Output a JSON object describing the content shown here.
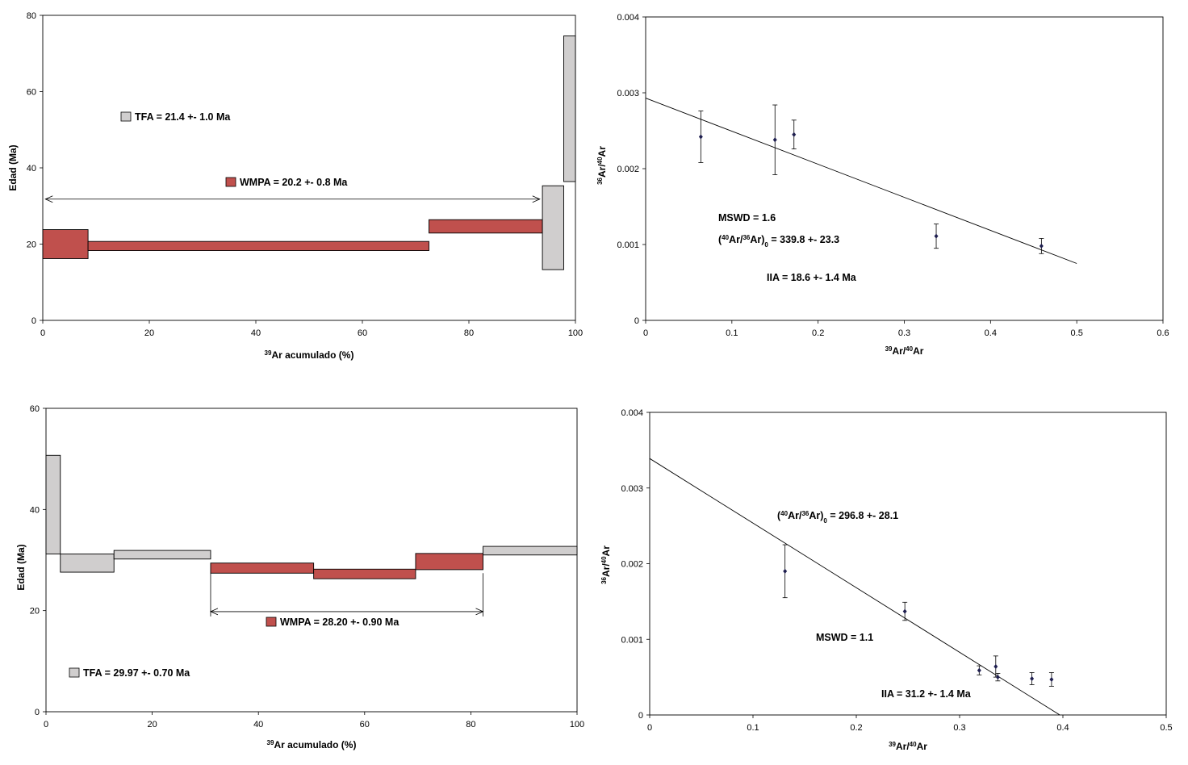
{
  "colors": {
    "plateau": "#c0504d",
    "nonplateau": "#d0cece",
    "stroke": "#000000",
    "point": "#1f1f4f"
  },
  "chart_data": [
    {
      "type": "bar",
      "subtype": "age-spectrum",
      "position": "top-left",
      "xlim": [
        0,
        100
      ],
      "ylim": [
        0,
        80
      ],
      "xticks": [
        0,
        20,
        40,
        60,
        80,
        100
      ],
      "yticks": [
        0,
        20,
        40,
        60,
        80
      ],
      "xlabel_sup": "39",
      "xlabel": "Ar acumulado (%)",
      "ylabel": "Edad (Ma)",
      "steps": [
        {
          "x0": 0,
          "x1": 8.5,
          "y0": 16.2,
          "y1": 23.8,
          "plateau": true
        },
        {
          "x0": 8.5,
          "x1": 72.5,
          "y0": 18.3,
          "y1": 20.7,
          "plateau": true
        },
        {
          "x0": 72.5,
          "x1": 93.8,
          "y0": 22.9,
          "y1": 26.4,
          "plateau": true
        },
        {
          "x0": 93.8,
          "x1": 97.8,
          "y0": 13.3,
          "y1": 35.3,
          "plateau": false
        },
        {
          "x0": 97.8,
          "x1": 100,
          "y0": 36.4,
          "y1": 74.6,
          "plateau": false
        }
      ],
      "plateau_arrow": {
        "x0": 0.5,
        "x1": 93.3,
        "y": 31.8
      },
      "legend": [
        {
          "label": "TFA = 21.4 +- 1.0 Ma",
          "plateau": false
        },
        {
          "label": "WMPA = 20.2 +- 0.8 Ma",
          "plateau": true
        }
      ]
    },
    {
      "type": "scatter",
      "subtype": "isochron",
      "position": "top-right",
      "xlim": [
        0,
        0.6
      ],
      "ylim": [
        0,
        0.004
      ],
      "xticks": [
        "0",
        "0.1",
        "0.2",
        "0.3",
        "0.4",
        "0.5",
        "0.6"
      ],
      "yticks": [
        "0",
        "0.001",
        "0.002",
        "0.003",
        "0.004"
      ],
      "xlabel": {
        "sup1": "39",
        "a": "Ar/",
        "sup2": "40",
        "b": "Ar"
      },
      "ylabel": {
        "sup1": "36",
        "a": "Ar/",
        "sup2": "40",
        "b": "Ar"
      },
      "points": [
        {
          "x": 0.064,
          "y": 0.00242,
          "err": 0.00034
        },
        {
          "x": 0.15,
          "y": 0.00238,
          "err": 0.00046
        },
        {
          "x": 0.172,
          "y": 0.00245,
          "err": 0.00019
        },
        {
          "x": 0.337,
          "y": 0.00111,
          "err": 0.00016
        },
        {
          "x": 0.459,
          "y": 0.00098,
          "err": 0.0001
        }
      ],
      "fit": {
        "x0": 0,
        "y0": 0.00293,
        "x1": 0.5,
        "y1": 0.00075
      },
      "annotations": {
        "mswd": "MSWD =  1.6",
        "ratio_open": "(",
        "ratio_s1": "40",
        "ratio_a": "Ar/",
        "ratio_s2": "36",
        "ratio_b": "Ar)",
        "ratio_s3": "0",
        "ratio_value": " =  339.8 +- 23.3",
        "iia": "IIA = 18.6 +- 1.4 Ma"
      }
    },
    {
      "type": "bar",
      "subtype": "age-spectrum",
      "position": "bottom-left",
      "xlim": [
        0,
        100
      ],
      "ylim": [
        0,
        60
      ],
      "xticks": [
        0,
        20,
        40,
        60,
        80,
        100
      ],
      "yticks": [
        0,
        20,
        40,
        60
      ],
      "xlabel_sup": "39",
      "xlabel": "Ar acumulado (%)",
      "ylabel": "Edad (Ma)",
      "steps": [
        {
          "x0": 0,
          "x1": 2.7,
          "y0": 31.2,
          "y1": 50.7,
          "plateau": false
        },
        {
          "x0": 2.7,
          "x1": 12.8,
          "y0": 27.6,
          "y1": 31.2,
          "plateau": false
        },
        {
          "x0": 12.8,
          "x1": 31.0,
          "y0": 30.2,
          "y1": 31.9,
          "plateau": false
        },
        {
          "x0": 31.0,
          "x1": 50.4,
          "y0": 27.4,
          "y1": 29.4,
          "plateau": true
        },
        {
          "x0": 50.4,
          "x1": 69.6,
          "y0": 26.3,
          "y1": 28.2,
          "plateau": true
        },
        {
          "x0": 69.6,
          "x1": 82.3,
          "y0": 28.1,
          "y1": 31.3,
          "plateau": true
        },
        {
          "x0": 82.3,
          "x1": 100,
          "y0": 31.0,
          "y1": 32.7,
          "plateau": false
        }
      ],
      "plateau_arrow": {
        "x0": 31.0,
        "x1": 82.3,
        "y": 19.8
      },
      "legend": [
        {
          "label": "WMPA = 28.20 +- 0.90 Ma",
          "plateau": true
        },
        {
          "label": "TFA = 29.97 +- 0.70 Ma",
          "plateau": false
        }
      ]
    },
    {
      "type": "scatter",
      "subtype": "isochron",
      "position": "bottom-right",
      "xlim": [
        0,
        0.5
      ],
      "ylim": [
        0,
        0.004
      ],
      "xticks": [
        "0",
        "0.1",
        "0.2",
        "0.3",
        "0.4",
        "0.5"
      ],
      "yticks": [
        "0",
        "0.001",
        "0.002",
        "0.003",
        "0.004"
      ],
      "xlabel": {
        "sup1": "39",
        "a": "Ar/",
        "sup2": "40",
        "b": "Ar"
      },
      "ylabel": {
        "sup1": "36",
        "a": "Ar/",
        "sup2": "40",
        "b": "Ar"
      },
      "points": [
        {
          "x": 0.131,
          "y": 0.0019,
          "err": 0.00035
        },
        {
          "x": 0.247,
          "y": 0.00137,
          "err": 0.00012
        },
        {
          "x": 0.319,
          "y": 0.00059,
          "err": 6e-05
        },
        {
          "x": 0.335,
          "y": 0.00064,
          "err": 0.00014
        },
        {
          "x": 0.337,
          "y": 0.0005,
          "err": 5e-05
        },
        {
          "x": 0.37,
          "y": 0.00048,
          "err": 8e-05
        },
        {
          "x": 0.389,
          "y": 0.00047,
          "err": 9e-05
        }
      ],
      "fit": {
        "x0": 0,
        "y0": 0.00339,
        "x1": 0.397,
        "y1": 0
      },
      "annotations": {
        "ratio_open": "(",
        "ratio_s1": "40",
        "ratio_a": "Ar/",
        "ratio_s2": "36",
        "ratio_b": "Ar)",
        "ratio_s3": "0",
        "ratio_value": " = 296.8 +- 28.1",
        "mswd": "MSWD = 1.1",
        "iia": "IIA = 31.2 +- 1.4 Ma"
      }
    }
  ]
}
